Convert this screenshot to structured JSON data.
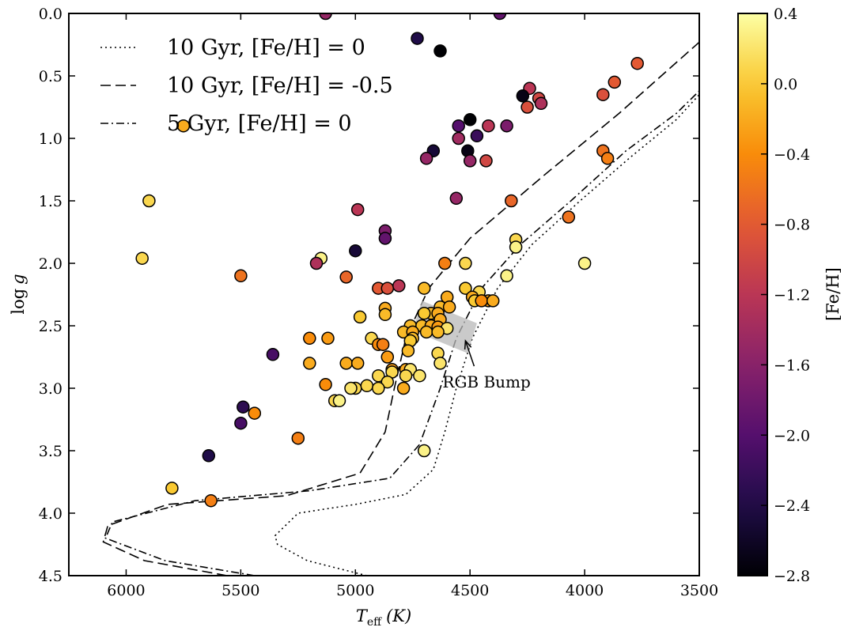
{
  "chart_data": {
    "type": "scatter",
    "xlabel_main": "T",
    "xlabel_sub": "eff",
    "xlabel_unit": "(K)",
    "ylabel_main": "log",
    "ylabel_var": "g",
    "xlim": [
      6250,
      3500
    ],
    "ylim": [
      0.0,
      4.5
    ],
    "xticks": [
      6000,
      5500,
      5000,
      4500,
      4000,
      3500
    ],
    "yticks": [
      0.0,
      0.5,
      1.0,
      1.5,
      2.0,
      2.5,
      3.0,
      3.5,
      4.0,
      4.5
    ],
    "legend_position": "top-left",
    "legend": [
      {
        "label": "10 Gyr, [Fe/H] = 0",
        "style": "dotted"
      },
      {
        "label": "10 Gyr, [Fe/H] = -0.5",
        "style": "dashed"
      },
      {
        "label": "5 Gyr, [Fe/H] = 0",
        "style": "dashdot"
      }
    ],
    "colorbar": {
      "label": "[Fe/H]",
      "range": [
        -2.8,
        0.4
      ],
      "ticks": [
        "0.4",
        "0.0",
        "−0.4",
        "−0.8",
        "−1.2",
        "−1.6",
        "−2.0",
        "−2.4",
        "−2.8"
      ],
      "colormap": "inferno"
    },
    "annotation": {
      "text": "RGB Bump",
      "point_teff": 4520,
      "point_logg": 2.62,
      "text_teff": 4620,
      "text_logg": 2.95
    },
    "rgb_bump_band": [
      [
        4710,
        2.3
      ],
      [
        4470,
        2.48
      ],
      [
        4510,
        2.72
      ],
      [
        4750,
        2.54
      ]
    ],
    "isochrones": [
      {
        "name": "10 Gyr, [Fe/H] = 0",
        "style": "dotted",
        "points": [
          [
            4950,
            4.5
          ],
          [
            5210,
            4.38
          ],
          [
            5340,
            4.25
          ],
          [
            5350,
            4.18
          ],
          [
            5250,
            4.0
          ],
          [
            5000,
            3.93
          ],
          [
            4780,
            3.85
          ],
          [
            4660,
            3.65
          ],
          [
            4610,
            3.35
          ],
          [
            4560,
            3.0
          ],
          [
            4490,
            2.6
          ],
          [
            4380,
            2.2
          ],
          [
            4230,
            1.85
          ],
          [
            4020,
            1.5
          ],
          [
            3800,
            1.15
          ],
          [
            3600,
            0.85
          ],
          [
            3500,
            0.65
          ]
        ]
      },
      {
        "name": "10 Gyr, [Fe/H] = -0.5",
        "style": "dashed",
        "points": [
          [
            5560,
            4.5
          ],
          [
            5920,
            4.38
          ],
          [
            6100,
            4.23
          ],
          [
            6080,
            4.1
          ],
          [
            5820,
            3.93
          ],
          [
            5300,
            3.86
          ],
          [
            4980,
            3.68
          ],
          [
            4870,
            3.35
          ],
          [
            4830,
            3.0
          ],
          [
            4780,
            2.6
          ],
          [
            4680,
            2.2
          ],
          [
            4500,
            1.8
          ],
          [
            4180,
            1.3
          ],
          [
            3850,
            0.8
          ],
          [
            3500,
            0.23
          ]
        ]
      },
      {
        "name": "5 Gyr, [Fe/H] = 0",
        "style": "dashdot",
        "points": [
          [
            5440,
            4.5
          ],
          [
            5830,
            4.38
          ],
          [
            6090,
            4.2
          ],
          [
            6060,
            4.07
          ],
          [
            5700,
            3.9
          ],
          [
            5200,
            3.82
          ],
          [
            4850,
            3.72
          ],
          [
            4720,
            3.45
          ],
          [
            4670,
            3.2
          ],
          [
            4630,
            3.0
          ],
          [
            4560,
            2.6
          ],
          [
            4450,
            2.2
          ],
          [
            4280,
            1.85
          ],
          [
            4060,
            1.5
          ],
          [
            3820,
            1.1
          ],
          [
            3600,
            0.8
          ],
          [
            3500,
            0.62
          ]
        ]
      }
    ],
    "points": [
      {
        "teff": 5130,
        "logg": 0.0,
        "feh": -1.5
      },
      {
        "teff": 4370,
        "logg": 0.0,
        "feh": -1.9
      },
      {
        "teff": 4730,
        "logg": 0.2,
        "feh": -2.4
      },
      {
        "teff": 4630,
        "logg": 0.3,
        "feh": -2.8
      },
      {
        "teff": 3770,
        "logg": 0.4,
        "feh": -0.8
      },
      {
        "teff": 4240,
        "logg": 0.6,
        "feh": -1.2
      },
      {
        "teff": 3870,
        "logg": 0.55,
        "feh": -0.8
      },
      {
        "teff": 4270,
        "logg": 0.66,
        "feh": -2.7
      },
      {
        "teff": 4200,
        "logg": 0.68,
        "feh": -1.0
      },
      {
        "teff": 4190,
        "logg": 0.72,
        "feh": -1.3
      },
      {
        "teff": 4250,
        "logg": 0.75,
        "feh": -0.9
      },
      {
        "teff": 3920,
        "logg": 0.65,
        "feh": -0.9
      },
      {
        "teff": 4500,
        "logg": 0.85,
        "feh": -2.8
      },
      {
        "teff": 4550,
        "logg": 0.9,
        "feh": -2.0
      },
      {
        "teff": 4420,
        "logg": 0.9,
        "feh": -1.2
      },
      {
        "teff": 4340,
        "logg": 0.9,
        "feh": -1.7
      },
      {
        "teff": 5750,
        "logg": 0.9,
        "feh": -0.2
      },
      {
        "teff": 4550,
        "logg": 1.0,
        "feh": -1.4
      },
      {
        "teff": 4470,
        "logg": 0.98,
        "feh": -2.2
      },
      {
        "teff": 4660,
        "logg": 1.1,
        "feh": -2.5
      },
      {
        "teff": 4510,
        "logg": 1.1,
        "feh": -2.7
      },
      {
        "teff": 3920,
        "logg": 1.1,
        "feh": -0.6
      },
      {
        "teff": 4690,
        "logg": 1.16,
        "feh": -1.5
      },
      {
        "teff": 4500,
        "logg": 1.18,
        "feh": -1.5
      },
      {
        "teff": 4430,
        "logg": 1.18,
        "feh": -1.0
      },
      {
        "teff": 3900,
        "logg": 1.16,
        "feh": -0.5
      },
      {
        "teff": 5900,
        "logg": 1.5,
        "feh": 0.1
      },
      {
        "teff": 4560,
        "logg": 1.48,
        "feh": -1.5
      },
      {
        "teff": 4320,
        "logg": 1.5,
        "feh": -0.7
      },
      {
        "teff": 4990,
        "logg": 1.57,
        "feh": -1.2
      },
      {
        "teff": 4070,
        "logg": 1.63,
        "feh": -0.6
      },
      {
        "teff": 4870,
        "logg": 1.74,
        "feh": -1.7
      },
      {
        "teff": 4870,
        "logg": 1.8,
        "feh": -1.9
      },
      {
        "teff": 4300,
        "logg": 1.81,
        "feh": 0.1
      },
      {
        "teff": 4300,
        "logg": 1.87,
        "feh": 0.3
      },
      {
        "teff": 5000,
        "logg": 1.9,
        "feh": -2.5
      },
      {
        "teff": 5930,
        "logg": 1.96,
        "feh": 0.1
      },
      {
        "teff": 5150,
        "logg": 1.96,
        "feh": 0.3
      },
      {
        "teff": 5170,
        "logg": 2.0,
        "feh": -1.3
      },
      {
        "teff": 4610,
        "logg": 2.0,
        "feh": -0.5
      },
      {
        "teff": 4520,
        "logg": 2.0,
        "feh": 0.1
      },
      {
        "teff": 4000,
        "logg": 2.0,
        "feh": 0.3
      },
      {
        "teff": 5500,
        "logg": 2.1,
        "feh": -0.6
      },
      {
        "teff": 5040,
        "logg": 2.11,
        "feh": -0.7
      },
      {
        "teff": 4340,
        "logg": 2.1,
        "feh": 0.3
      },
      {
        "teff": 4900,
        "logg": 2.2,
        "feh": -0.8
      },
      {
        "teff": 4860,
        "logg": 2.2,
        "feh": -0.9
      },
      {
        "teff": 4810,
        "logg": 2.18,
        "feh": -1.2
      },
      {
        "teff": 4700,
        "logg": 2.2,
        "feh": -0.1
      },
      {
        "teff": 4520,
        "logg": 2.2,
        "feh": 0.0
      },
      {
        "teff": 4460,
        "logg": 2.23,
        "feh": 0.1
      },
      {
        "teff": 4600,
        "logg": 2.27,
        "feh": -0.2
      },
      {
        "teff": 4490,
        "logg": 2.27,
        "feh": -0.2
      },
      {
        "teff": 4420,
        "logg": 2.3,
        "feh": -0.3
      },
      {
        "teff": 4480,
        "logg": 2.3,
        "feh": 0.0
      },
      {
        "teff": 4450,
        "logg": 2.3,
        "feh": -0.4
      },
      {
        "teff": 4400,
        "logg": 2.3,
        "feh": -0.2
      },
      {
        "teff": 4630,
        "logg": 2.35,
        "feh": -0.1
      },
      {
        "teff": 4590,
        "logg": 2.35,
        "feh": -0.2
      },
      {
        "teff": 4870,
        "logg": 2.36,
        "feh": -0.2
      },
      {
        "teff": 4870,
        "logg": 2.41,
        "feh": -0.1
      },
      {
        "teff": 4670,
        "logg": 2.4,
        "feh": -0.1
      },
      {
        "teff": 4700,
        "logg": 2.4,
        "feh": 0.0
      },
      {
        "teff": 4640,
        "logg": 2.4,
        "feh": -0.2
      },
      {
        "teff": 4980,
        "logg": 2.43,
        "feh": 0.0
      },
      {
        "teff": 4630,
        "logg": 2.45,
        "feh": -0.2
      },
      {
        "teff": 4760,
        "logg": 2.5,
        "feh": -0.1
      },
      {
        "teff": 4710,
        "logg": 2.5,
        "feh": -0.1
      },
      {
        "teff": 4670,
        "logg": 2.5,
        "feh": -0.2
      },
      {
        "teff": 4640,
        "logg": 2.51,
        "feh": -0.3
      },
      {
        "teff": 4600,
        "logg": 2.52,
        "feh": 0.2
      },
      {
        "teff": 4790,
        "logg": 2.55,
        "feh": -0.1
      },
      {
        "teff": 4750,
        "logg": 2.55,
        "feh": -0.2
      },
      {
        "teff": 4690,
        "logg": 2.55,
        "feh": -0.1
      },
      {
        "teff": 4640,
        "logg": 2.55,
        "feh": -0.1
      },
      {
        "teff": 4750,
        "logg": 2.6,
        "feh": -0.1
      },
      {
        "teff": 4930,
        "logg": 2.6,
        "feh": 0.1
      },
      {
        "teff": 4760,
        "logg": 2.62,
        "feh": 0.0
      },
      {
        "teff": 5200,
        "logg": 2.6,
        "feh": -0.4
      },
      {
        "teff": 5120,
        "logg": 2.6,
        "feh": -0.3
      },
      {
        "teff": 4900,
        "logg": 2.65,
        "feh": -0.4
      },
      {
        "teff": 4880,
        "logg": 2.65,
        "feh": -0.5
      },
      {
        "teff": 4770,
        "logg": 2.7,
        "feh": -0.1
      },
      {
        "teff": 4640,
        "logg": 2.72,
        "feh": 0.1
      },
      {
        "teff": 5360,
        "logg": 2.73,
        "feh": -2.1
      },
      {
        "teff": 4860,
        "logg": 2.75,
        "feh": -0.3
      },
      {
        "teff": 4630,
        "logg": 2.8,
        "feh": 0.2
      },
      {
        "teff": 5200,
        "logg": 2.8,
        "feh": -0.2
      },
      {
        "teff": 5040,
        "logg": 2.8,
        "feh": -0.2
      },
      {
        "teff": 4990,
        "logg": 2.8,
        "feh": -0.2
      },
      {
        "teff": 4840,
        "logg": 2.85,
        "feh": -0.3
      },
      {
        "teff": 4780,
        "logg": 2.85,
        "feh": -0.2
      },
      {
        "teff": 4760,
        "logg": 2.85,
        "feh": 0.2
      },
      {
        "teff": 4840,
        "logg": 2.87,
        "feh": 0.1
      },
      {
        "teff": 4900,
        "logg": 2.9,
        "feh": 0.1
      },
      {
        "teff": 4780,
        "logg": 2.9,
        "feh": 0.1
      },
      {
        "teff": 4720,
        "logg": 2.9,
        "feh": 0.2
      },
      {
        "teff": 4860,
        "logg": 2.95,
        "feh": 0.1
      },
      {
        "teff": 5130,
        "logg": 2.97,
        "feh": -0.4
      },
      {
        "teff": 5000,
        "logg": 3.0,
        "feh": 0.1
      },
      {
        "teff": 4950,
        "logg": 2.98,
        "feh": 0.1
      },
      {
        "teff": 4900,
        "logg": 3.0,
        "feh": 0.1
      },
      {
        "teff": 4790,
        "logg": 3.0,
        "feh": -0.2
      },
      {
        "teff": 5020,
        "logg": 3.0,
        "feh": 0.2
      },
      {
        "teff": 5090,
        "logg": 3.1,
        "feh": 0.1
      },
      {
        "teff": 5070,
        "logg": 3.1,
        "feh": 0.3
      },
      {
        "teff": 5490,
        "logg": 3.15,
        "feh": -2.3
      },
      {
        "teff": 5440,
        "logg": 3.2,
        "feh": -0.4
      },
      {
        "teff": 5500,
        "logg": 3.28,
        "feh": -2.1
      },
      {
        "teff": 5250,
        "logg": 3.4,
        "feh": -0.5
      },
      {
        "teff": 4700,
        "logg": 3.5,
        "feh": 0.3
      },
      {
        "teff": 5640,
        "logg": 3.54,
        "feh": -2.4
      },
      {
        "teff": 5800,
        "logg": 3.8,
        "feh": 0.0
      },
      {
        "teff": 5630,
        "logg": 3.9,
        "feh": -0.5
      }
    ]
  }
}
